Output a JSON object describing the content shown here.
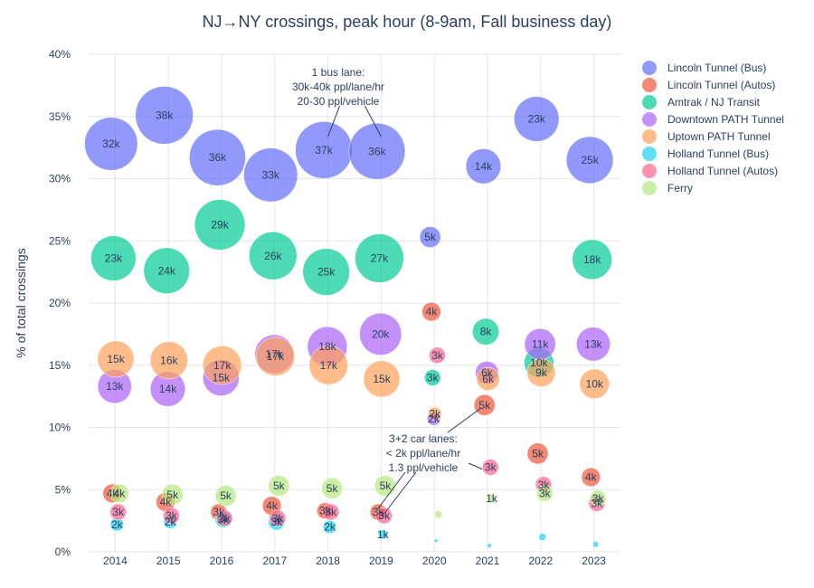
{
  "chart_data": {
    "type": "scatter",
    "title": "NJ→NY crossings, peak hour (8-9am, Fall business day)",
    "xlabel": "",
    "ylabel": "% of total crossings",
    "x_ticks": [
      "2014",
      "2015",
      "2016",
      "2017",
      "2018",
      "2019",
      "2020",
      "2021",
      "2022",
      "2023"
    ],
    "y_ticks": [
      "0%",
      "5%",
      "10%",
      "15%",
      "20%",
      "25%",
      "30%",
      "35%",
      "40%"
    ],
    "ylim": [
      0,
      40
    ],
    "grid": true,
    "legend_placement": "top-right",
    "series": [
      {
        "name": "Lincoln Tunnel (Bus)",
        "color": "#636efa",
        "points": [
          {
            "year": 2014,
            "pct": 32.8,
            "label": "32k",
            "k": 32
          },
          {
            "year": 2015,
            "pct": 35.1,
            "label": "38k",
            "k": 38
          },
          {
            "year": 2016,
            "pct": 31.7,
            "label": "36k",
            "k": 36
          },
          {
            "year": 2017,
            "pct": 30.3,
            "label": "33k",
            "k": 33
          },
          {
            "year": 2018,
            "pct": 32.3,
            "label": "37k",
            "k": 37
          },
          {
            "year": 2019,
            "pct": 32.2,
            "label": "36k",
            "k": 36
          },
          {
            "year": 2020,
            "pct": 25.3,
            "label": "5k",
            "k": 5
          },
          {
            "year": 2021,
            "pct": 31.0,
            "label": "14k",
            "k": 14
          },
          {
            "year": 2022,
            "pct": 34.8,
            "label": "23k",
            "k": 23
          },
          {
            "year": 2023,
            "pct": 31.5,
            "label": "25k",
            "k": 25
          }
        ]
      },
      {
        "name": "Lincoln Tunnel (Autos)",
        "color": "#ef553b",
        "points": [
          {
            "year": 2014,
            "pct": 4.7,
            "label": "4k",
            "k": 4
          },
          {
            "year": 2015,
            "pct": 4.0,
            "label": "4k",
            "k": 4
          },
          {
            "year": 2016,
            "pct": 3.2,
            "label": "3k",
            "k": 3
          },
          {
            "year": 2017,
            "pct": 3.7,
            "label": "4k",
            "k": 4
          },
          {
            "year": 2018,
            "pct": 3.3,
            "label": "3k",
            "k": 3
          },
          {
            "year": 2019,
            "pct": 3.2,
            "label": "3k",
            "k": 3
          },
          {
            "year": 2020,
            "pct": 19.3,
            "label": "4k",
            "k": 4
          },
          {
            "year": 2021,
            "pct": 11.8,
            "label": "5k",
            "k": 5
          },
          {
            "year": 2022,
            "pct": 7.9,
            "label": "5k",
            "k": 5
          },
          {
            "year": 2023,
            "pct": 6.0,
            "label": "4k",
            "k": 4
          }
        ]
      },
      {
        "name": "Amtrak / NJ Transit",
        "color": "#00cc96",
        "points": [
          {
            "year": 2014,
            "pct": 23.6,
            "label": "23k",
            "k": 23
          },
          {
            "year": 2015,
            "pct": 22.6,
            "label": "24k",
            "k": 24
          },
          {
            "year": 2016,
            "pct": 26.3,
            "label": "29k",
            "k": 29
          },
          {
            "year": 2017,
            "pct": 23.8,
            "label": "26k",
            "k": 26
          },
          {
            "year": 2018,
            "pct": 22.5,
            "label": "25k",
            "k": 25
          },
          {
            "year": 2019,
            "pct": 23.6,
            "label": "27k",
            "k": 27
          },
          {
            "year": 2020,
            "pct": 14.0,
            "label": "3k",
            "k": 3
          },
          {
            "year": 2021,
            "pct": 17.7,
            "label": "8k",
            "k": 8
          },
          {
            "year": 2022,
            "pct": 15.2,
            "label": "10k",
            "k": 10
          },
          {
            "year": 2023,
            "pct": 23.5,
            "label": "18k",
            "k": 18
          }
        ]
      },
      {
        "name": "Downtown PATH Tunnel",
        "color": "#ab63fa",
        "points": [
          {
            "year": 2014,
            "pct": 13.3,
            "label": "13k",
            "k": 13
          },
          {
            "year": 2015,
            "pct": 13.1,
            "label": "14k",
            "k": 14
          },
          {
            "year": 2016,
            "pct": 14.0,
            "label": "15k",
            "k": 15
          },
          {
            "year": 2017,
            "pct": 15.9,
            "label": "17k",
            "k": 17
          },
          {
            "year": 2018,
            "pct": 16.5,
            "label": "18k",
            "k": 18
          },
          {
            "year": 2019,
            "pct": 17.5,
            "label": "20k",
            "k": 20
          },
          {
            "year": 2020,
            "pct": 10.7,
            "label": "2k",
            "k": 2
          },
          {
            "year": 2021,
            "pct": 14.4,
            "label": "6k",
            "k": 6
          },
          {
            "year": 2022,
            "pct": 16.7,
            "label": "11k",
            "k": 11
          },
          {
            "year": 2023,
            "pct": 16.7,
            "label": "13k",
            "k": 13
          }
        ]
      },
      {
        "name": "Uptown PATH Tunnel",
        "color": "#ffa15a",
        "points": [
          {
            "year": 2014,
            "pct": 15.5,
            "label": "15k",
            "k": 15
          },
          {
            "year": 2015,
            "pct": 15.4,
            "label": "16k",
            "k": 16
          },
          {
            "year": 2016,
            "pct": 15.0,
            "label": "17k",
            "k": 17
          },
          {
            "year": 2017,
            "pct": 15.7,
            "label": "17k",
            "k": 17
          },
          {
            "year": 2018,
            "pct": 15.0,
            "label": "17k",
            "k": 17
          },
          {
            "year": 2019,
            "pct": 13.9,
            "label": "15k",
            "k": 15
          },
          {
            "year": 2020,
            "pct": 11.1,
            "label": "2k",
            "k": 2
          },
          {
            "year": 2021,
            "pct": 13.9,
            "label": "6k",
            "k": 6
          },
          {
            "year": 2022,
            "pct": 14.4,
            "label": "9k",
            "k": 9
          },
          {
            "year": 2023,
            "pct": 13.5,
            "label": "10k",
            "k": 10
          }
        ]
      },
      {
        "name": "Holland Tunnel (Bus)",
        "color": "#19d3f3",
        "points": [
          {
            "year": 2014,
            "pct": 2.2,
            "label": "2k",
            "k": 2
          },
          {
            "year": 2015,
            "pct": 2.4,
            "label": "2k",
            "k": 2
          },
          {
            "year": 2016,
            "pct": 2.6,
            "label": "3k",
            "k": 3
          },
          {
            "year": 2017,
            "pct": 2.4,
            "label": "3k",
            "k": 3
          },
          {
            "year": 2018,
            "pct": 2.0,
            "label": "2k",
            "k": 2
          },
          {
            "year": 2019,
            "pct": 1.4,
            "label": "1k",
            "k": 1
          },
          {
            "year": 2020,
            "pct": 0.9,
            "label": "",
            "k": 0.1
          },
          {
            "year": 2021,
            "pct": 0.5,
            "label": "",
            "k": 0.2
          },
          {
            "year": 2022,
            "pct": 1.2,
            "label": "",
            "k": 0.6
          },
          {
            "year": 2023,
            "pct": 0.6,
            "label": "",
            "k": 0.4
          }
        ]
      },
      {
        "name": "Holland Tunnel (Autos)",
        "color": "#ff6692",
        "points": [
          {
            "year": 2014,
            "pct": 3.2,
            "label": "3k",
            "k": 3
          },
          {
            "year": 2015,
            "pct": 2.9,
            "label": "3k",
            "k": 3
          },
          {
            "year": 2016,
            "pct": 2.7,
            "label": "3k",
            "k": 3
          },
          {
            "year": 2017,
            "pct": 2.7,
            "label": "3k",
            "k": 3
          },
          {
            "year": 2018,
            "pct": 3.2,
            "label": "3k",
            "k": 3
          },
          {
            "year": 2019,
            "pct": 2.9,
            "label": "3k",
            "k": 3
          },
          {
            "year": 2020,
            "pct": 15.8,
            "label": "3k",
            "k": 3
          },
          {
            "year": 2021,
            "pct": 6.8,
            "label": "3k",
            "k": 3
          },
          {
            "year": 2022,
            "pct": 5.4,
            "label": "3k",
            "k": 3
          },
          {
            "year": 2023,
            "pct": 3.9,
            "label": "3k",
            "k": 3
          }
        ]
      },
      {
        "name": "Ferry",
        "color": "#b6e880",
        "points": [
          {
            "year": 2014,
            "pct": 4.7,
            "label": "4k",
            "k": 4
          },
          {
            "year": 2015,
            "pct": 4.6,
            "label": "5k",
            "k": 5
          },
          {
            "year": 2016,
            "pct": 4.5,
            "label": "5k",
            "k": 5
          },
          {
            "year": 2017,
            "pct": 5.3,
            "label": "5k",
            "k": 5
          },
          {
            "year": 2018,
            "pct": 5.1,
            "label": "5k",
            "k": 5
          },
          {
            "year": 2019,
            "pct": 5.3,
            "label": "5k",
            "k": 5
          },
          {
            "year": 2020,
            "pct": 3.0,
            "label": "",
            "k": 0.6
          },
          {
            "year": 2021,
            "pct": 4.3,
            "label": "1k",
            "k": 1
          },
          {
            "year": 2022,
            "pct": 4.7,
            "label": "3k",
            "k": 3
          },
          {
            "year": 2023,
            "pct": 4.3,
            "label": "3k",
            "k": 3
          }
        ]
      }
    ],
    "annotations": [
      {
        "lines": [
          "1 bus lane:",
          "30k-40k ppl/lane/hr",
          "20-30 ppl/vehicle"
        ]
      },
      {
        "lines": [
          "3+2 car lanes:",
          "< 2k ppl/lane/hr",
          "1.3 ppl/vehicle"
        ]
      }
    ]
  }
}
